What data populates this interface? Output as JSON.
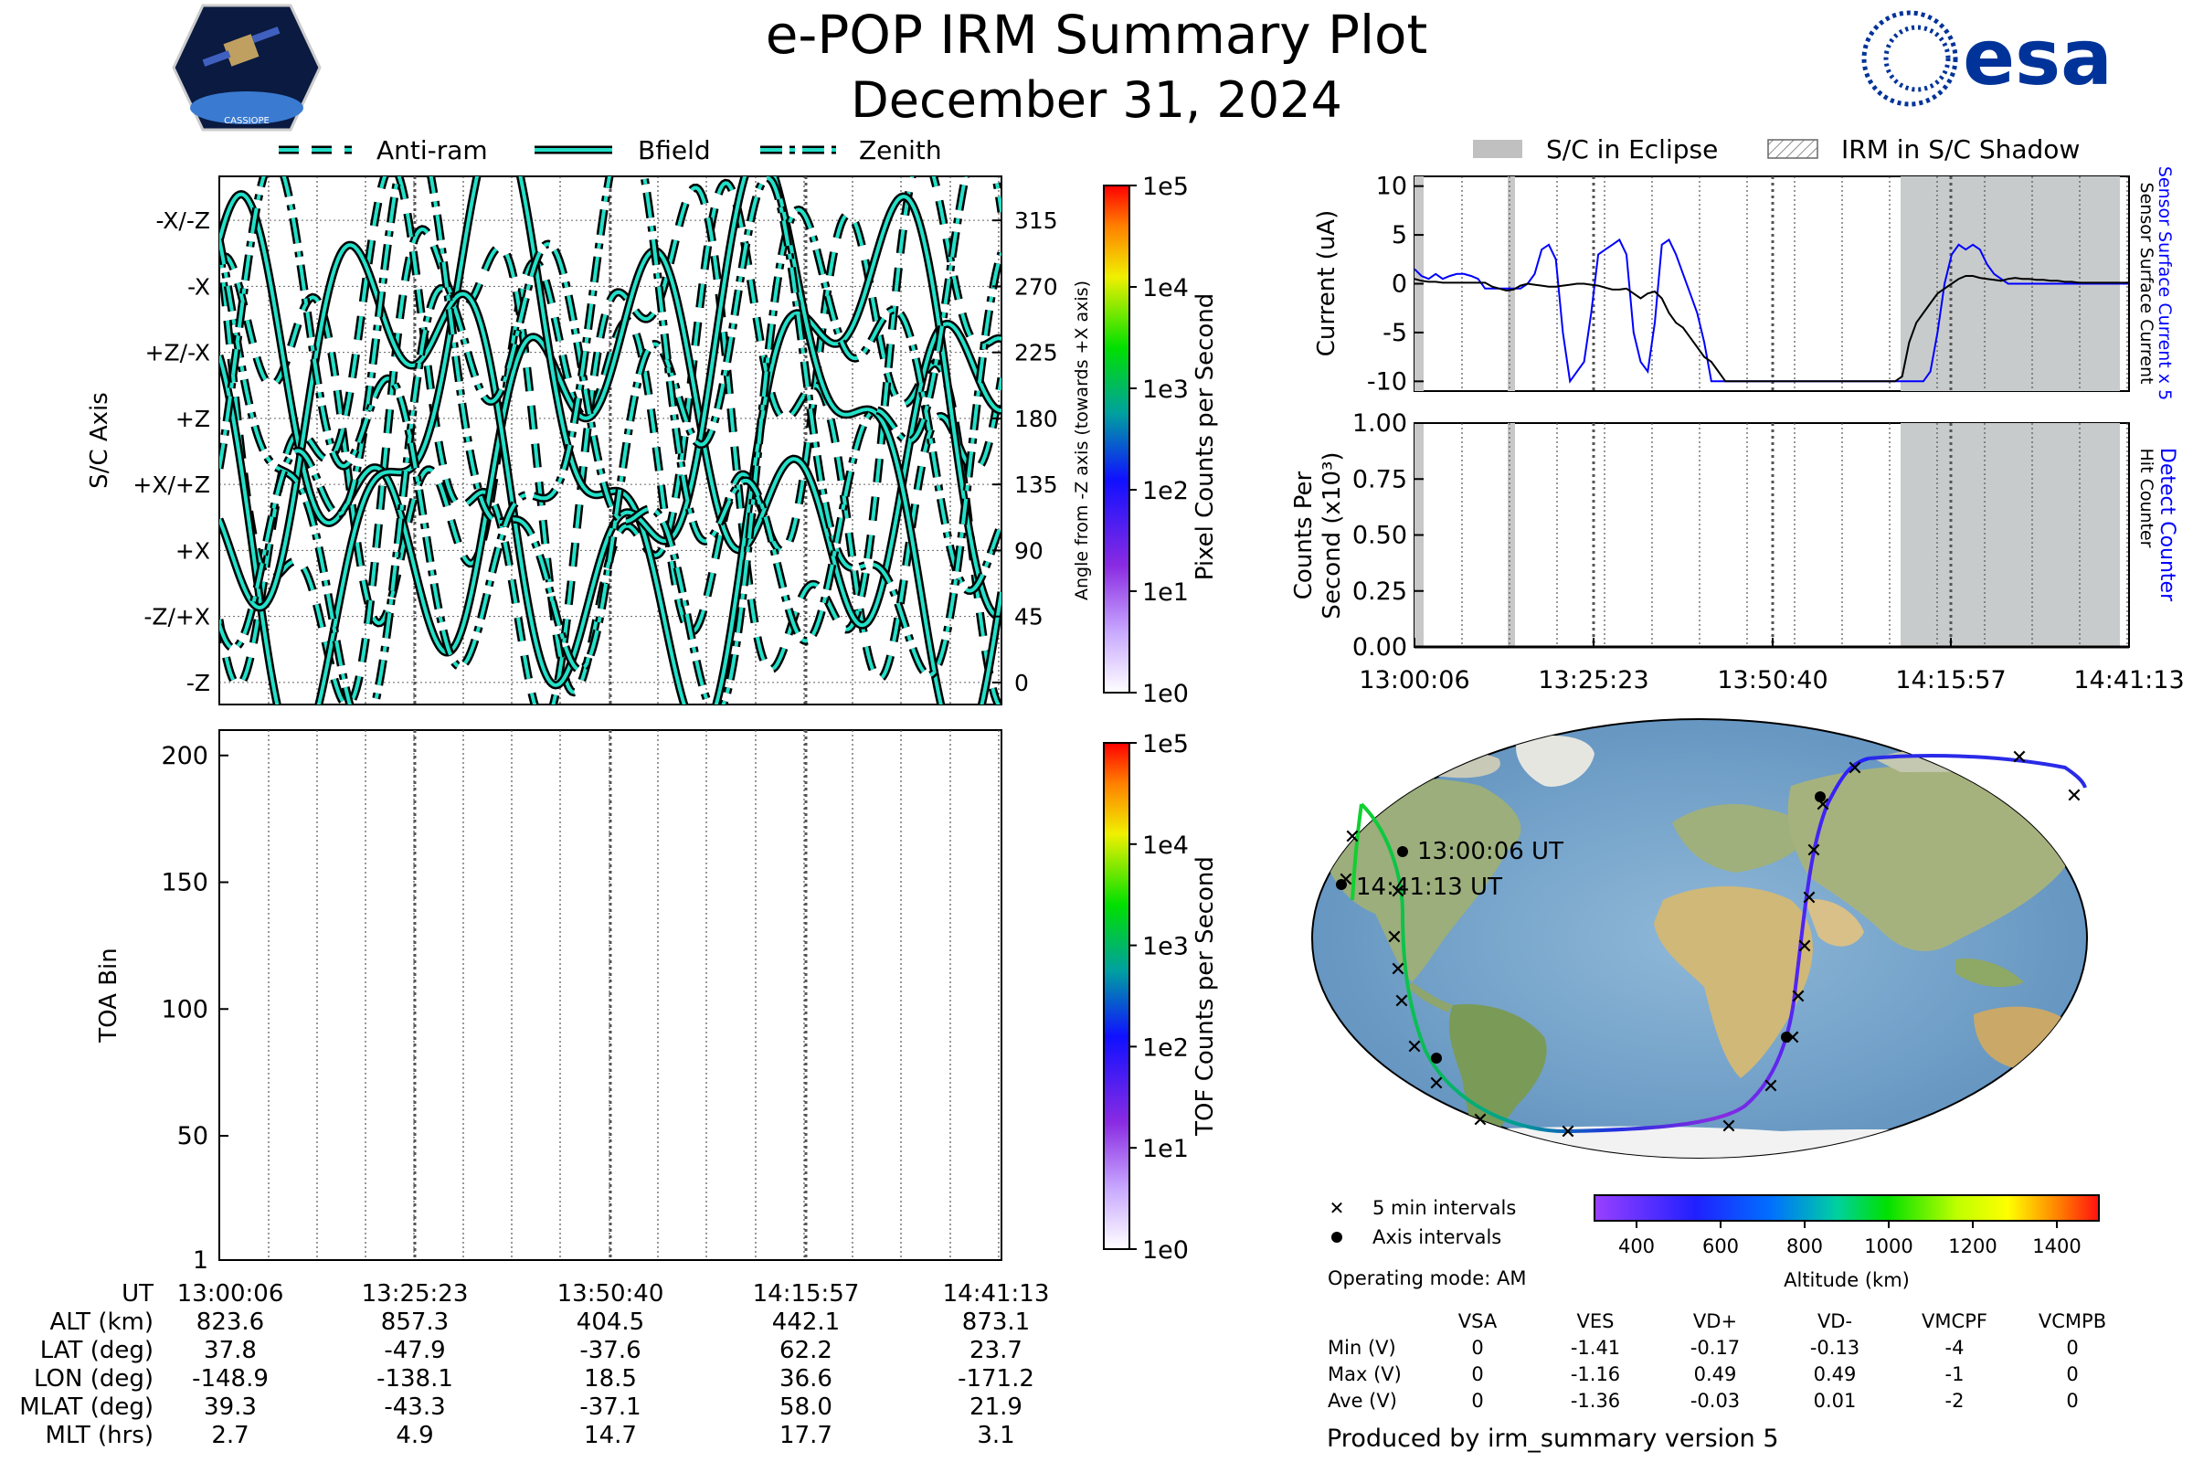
{
  "header": {
    "title": "e-POP IRM Summary Plot",
    "date": "December 31, 2024",
    "mission_logo_text": "CASSIOPE",
    "esa_logo_text": "esa",
    "colors": {
      "esa_blue": "#003399",
      "trace_cyan": "#22e0c8"
    }
  },
  "legend_top": {
    "items": [
      {
        "label": "Anti-ram",
        "style": "dashed"
      },
      {
        "label": "Bfield",
        "style": "solid"
      },
      {
        "label": "Zenith",
        "style": "dashdot"
      }
    ]
  },
  "legend_right": {
    "items": [
      {
        "label": "S/C in Eclipse",
        "style": "gray-fill"
      },
      {
        "label": "IRM in S/C Shadow",
        "style": "hatch"
      }
    ]
  },
  "chart_data": [
    {
      "id": "sc-axis",
      "type": "line",
      "ylabel": "S/C Axis",
      "ylabel_right": "Angle from -Z axis (towards +X axis)",
      "ylim": [
        -15,
        345
      ],
      "y_axis_labels": [
        "-X/-Z",
        "-X",
        "+Z/-X",
        "+Z",
        "+X/+Z",
        "+X",
        "-Z/+X",
        "-Z"
      ],
      "y_right_ticks": [
        315,
        270,
        225,
        180,
        135,
        90,
        45,
        0
      ],
      "series": [
        {
          "name": "Anti-ram",
          "style": "dashed"
        },
        {
          "name": "Bfield",
          "style": "solid"
        },
        {
          "name": "Zenith",
          "style": "dashdot"
        }
      ],
      "colorbar": {
        "label": "Pixel Counts per Second",
        "ticks": [
          "1e5",
          "1e4",
          "1e3",
          "1e2",
          "1e1",
          "1e0"
        ]
      }
    },
    {
      "id": "toa",
      "type": "heatmap",
      "ylabel": "TOA Bin",
      "ylim": [
        1,
        210
      ],
      "yticks": [
        1,
        50,
        100,
        150,
        200
      ],
      "colorbar": {
        "label": "TOF Counts per Second",
        "ticks": [
          "1e5",
          "1e4",
          "1e3",
          "1e2",
          "1e1",
          "1e0"
        ]
      }
    },
    {
      "id": "current",
      "type": "line",
      "ylabel": "Current (uA)",
      "ylim": [
        -11,
        11
      ],
      "yticks": [
        10,
        5,
        0,
        -5,
        -10
      ],
      "right_labels": [
        {
          "text": "Sensor Surface Current x 5",
          "color": "#0000ff"
        },
        {
          "text": "Sensor Surface Current",
          "color": "#000000"
        }
      ],
      "x_minutes": [
        0,
        1,
        2,
        3,
        4,
        5,
        6,
        7,
        8,
        9,
        10,
        11,
        12,
        13,
        14,
        15,
        16,
        17,
        18,
        19,
        20,
        21,
        22,
        23,
        24,
        25,
        26,
        27,
        28,
        29,
        30,
        31,
        32,
        33,
        34,
        35,
        36,
        37,
        38,
        39,
        40,
        41,
        42,
        43,
        44,
        45,
        46,
        47,
        48,
        49,
        50,
        51,
        52,
        53,
        54,
        55,
        56,
        57,
        58,
        59,
        60,
        61,
        62,
        63,
        64,
        65,
        66,
        67,
        68,
        69,
        70,
        71,
        72,
        73,
        74,
        75,
        76,
        77,
        78,
        79,
        80,
        81,
        82,
        83,
        84,
        85,
        86,
        87,
        88,
        89,
        90,
        91,
        92,
        93,
        94,
        95,
        96,
        97,
        98,
        99,
        100,
        101
      ],
      "series": [
        {
          "name": "Sensor Surface Current",
          "color": "#000000",
          "values": [
            0.5,
            0.3,
            0.2,
            0.2,
            0.1,
            0.1,
            0.1,
            0.1,
            0.1,
            0.1,
            0.1,
            -0.3,
            -0.5,
            -0.7,
            -0.6,
            -0.2,
            0.0,
            -0.1,
            -0.2,
            -0.3,
            -0.3,
            -0.2,
            -0.1,
            0.0,
            0.0,
            -0.1,
            -0.2,
            -0.4,
            -0.6,
            -0.6,
            -0.5,
            -1.0,
            -1.5,
            -1.0,
            -0.8,
            -1.5,
            -3.0,
            -4.0,
            -4.5,
            -5.5,
            -6.5,
            -7.5,
            -8.0,
            -9.0,
            -10.0,
            -10.0,
            -10.0,
            -10.0,
            -10.0,
            -10.0,
            -10.0,
            -10.0,
            -10.0,
            -10.0,
            -10.0,
            -10.0,
            -10.0,
            -10.0,
            -10.0,
            -10.0,
            -10.0,
            -10.0,
            -10.0,
            -10.0,
            -10.0,
            -10.0,
            -10.0,
            -10.0,
            -10.0,
            -9.5,
            -6.0,
            -4.0,
            -3.0,
            -2.0,
            -1.0,
            -0.5,
            0.0,
            0.5,
            0.8,
            0.8,
            0.6,
            0.5,
            0.4,
            0.3,
            0.5,
            0.6,
            0.5,
            0.5,
            0.4,
            0.4,
            0.3,
            0.3,
            0.2,
            0.2,
            0.1,
            0.1,
            0.1,
            0.1,
            0.1,
            0.1,
            0.1,
            0.1
          ]
        },
        {
          "name": "Sensor Surface Current x 5",
          "color": "#0000ff",
          "values": [
            1.5,
            0.8,
            0.5,
            1.0,
            0.5,
            0.8,
            1.0,
            1.0,
            0.8,
            0.5,
            -0.5,
            -0.5,
            -0.5,
            -0.5,
            -0.5,
            -0.5,
            0.0,
            1.0,
            3.5,
            4.0,
            2.5,
            -5.0,
            -10.0,
            -9.0,
            -8.0,
            -3.0,
            3.0,
            3.5,
            4.0,
            4.5,
            3.0,
            -5.0,
            -8.0,
            -9.0,
            -4.0,
            4.0,
            4.5,
            3.0,
            1.0,
            -1.0,
            -3.0,
            -6.0,
            -10.0,
            -10.0,
            -10.0,
            -10.0,
            -10.0,
            -10.0,
            -10.0,
            -10.0,
            -10.0,
            -10.0,
            -10.0,
            -10.0,
            -10.0,
            -10.0,
            -10.0,
            -10.0,
            -10.0,
            -10.0,
            -10.0,
            -10.0,
            -10.0,
            -10.0,
            -10.0,
            -10.0,
            -10.0,
            -10.0,
            -10.0,
            -10.0,
            -10.0,
            -10.0,
            -10.0,
            -9.0,
            -5.0,
            0.0,
            3.0,
            4.0,
            3.5,
            4.0,
            3.5,
            2.0,
            1.0,
            0.5,
            0.0,
            0.0,
            0.0,
            0.0,
            0.0,
            0.0,
            0.0,
            0.0,
            0.0,
            0.0,
            0.0,
            0.0,
            0.0,
            0.0,
            0.0,
            0.0,
            0.0,
            0.0
          ]
        }
      ]
    },
    {
      "id": "counts",
      "type": "line",
      "ylabel": "Counts Per Second (x10³)",
      "ylabel_line1": "Counts Per",
      "ylabel_line2": "Second (x10³)",
      "ylim": [
        0,
        1
      ],
      "yticks": [
        "1.00",
        "0.75",
        "0.50",
        "0.25",
        "0.00"
      ],
      "right_labels": [
        {
          "text": "Detect Counter",
          "color": "#0000ff"
        },
        {
          "text": "Hit Counter",
          "color": "#000000"
        }
      ],
      "xtick_labels": [
        "13:00:06",
        "13:25:23",
        "13:50:40",
        "14:15:57",
        "14:41:13"
      ],
      "series": [
        {
          "name": "Detect Counter",
          "color": "#0000ff",
          "values": [
            0,
            0
          ]
        },
        {
          "name": "Hit Counter",
          "color": "#000000",
          "values": [
            0,
            0
          ]
        }
      ]
    },
    {
      "id": "altitude-colorbar",
      "type": "heatmap",
      "xlabel": "Altitude (km)",
      "xlim": [
        300,
        1500
      ],
      "xticks": [
        400,
        600,
        800,
        1000,
        1200,
        1400
      ]
    }
  ],
  "map": {
    "start_label": "13:00:06 UT",
    "end_label": "14:41:13 UT",
    "legend_5min": "5 min intervals",
    "legend_axis": "Axis intervals"
  },
  "summary_table": {
    "header": "UT",
    "times": [
      "13:00:06",
      "13:25:23",
      "13:50:40",
      "14:15:57",
      "14:41:13"
    ],
    "rows": [
      {
        "label": "ALT (km)",
        "values": [
          "823.6",
          "857.3",
          "404.5",
          "442.1",
          "873.1"
        ]
      },
      {
        "label": "LAT (deg)",
        "values": [
          "37.8",
          "-47.9",
          "-37.6",
          "62.2",
          "23.7"
        ]
      },
      {
        "label": "LON (deg)",
        "values": [
          "-148.9",
          "-138.1",
          "18.5",
          "36.6",
          "-171.2"
        ]
      },
      {
        "label": "MLAT (deg)",
        "values": [
          "39.3",
          "-43.3",
          "-37.1",
          "58.0",
          "21.9"
        ]
      },
      {
        "label": "MLT (hrs)",
        "values": [
          "2.7",
          "4.9",
          "14.7",
          "17.7",
          "3.1"
        ]
      }
    ]
  },
  "voltage_table": {
    "operating_mode": "Operating mode: AM",
    "columns": [
      "VSA",
      "VES",
      "VD+",
      "VD-",
      "VMCPF",
      "VCMPB"
    ],
    "rows": [
      {
        "label": "Min (V)",
        "values": [
          "0",
          "-1.41",
          "-0.17",
          "-0.13",
          "-4",
          "0"
        ]
      },
      {
        "label": "Max (V)",
        "values": [
          "0",
          "-1.16",
          "0.49",
          "0.49",
          "-1",
          "0"
        ]
      },
      {
        "label": "Ave (V)",
        "values": [
          "0",
          "-1.36",
          "-0.03",
          "0.01",
          "-2",
          "0"
        ]
      }
    ]
  },
  "footer": "Produced by irm_summary version 5"
}
